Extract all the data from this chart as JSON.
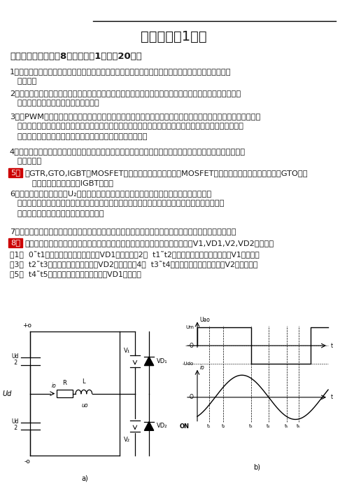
{
  "title": "考试试卷（1）卷",
  "section1_header": "一、填空题（本题共8小题，每空1分，共20分）",
  "q1": "1、电子技术包括＿＿＿＿＿＿和电力电子技术两大分支，通常所说的模拟电子技术和数字电子技术就属\n   于前者。",
  "q2": "2、为减少自身损耗，提高效率，电力电子器件一般都工作在＿＿＿＿＿＿状态。当器件的工作频率极高时，\n   ＿＿＿＿＿＿损耗合成为主要的损耗。",
  "q3": "3、在PWM控制电路中，载波频率与调制信号频率之比称为＿＿＿＿＿＿＿＿＿＿，当它为常数时的调制方式称为\n   ＿＿＿＿＿＿调制。在逆变电路的输出频率围划分成若干频段，每个频段载波频率与调制信号频率之比为给\n   定的调制方式处为＿＿＿＿＿＿分段异步＿＿＿＿＿＿调制。",
  "q4": "4、面积等效原理指的是，＿＿冲量＿＿＿相等而＿＿形状＿＿不同的窄脆冲加在具有惯性的环节上时，其效果\n   基本相同。",
  "q5": "在GTR,GTO,IGBT与MOSFET中，开关速度最快的是＿＿MOSFET＿，单管输出功率最大的是＿＿GTO＿，\n   应用最为广泛的是＿＿IGBT＿＿。",
  "q6": "6、设三相电源的相电压为U₂，三相半波可控整流电路接电阵负载时，晶阀管可能承受的最大\n   反向电压为电源线电压的峰値，即＿＿＿＿＿＿＿＿＿＿＿＿＿＿＿＿＿，其承受的最大正向电压\n   为＿＿＿＿＿＿＿＿＿＿＿＿＿＿＿＿。",
  "q7": "7、逆变电路的负载如果接到电源，则称为＿＿＿＿＿＿逆变，如果接到负载，则称为＿＿＿＿＿＿逆变。",
  "q8": "如下图，指出单相半桥电压型逆变电路工作过程中各时间段电流流经的通路（用V1,VD1,V2,VD2表示）。",
  "q8_sub1": "（1）  0˜t1时间段，电流的通路为＿＿VD1＿＿＿；（2）  t1˜t2时间段，电流的通路为＿＿＿V1＿＿＿；",
  "q8_sub2": "（3）  t2˜t3时间段，电流的通路为＿VD2＿＿＿；（4）  t3˜t4时间段，电流的通路为＿＿V2＿＿＿＿；",
  "q8_sub3": "（5）  t4˜t5时间段，电流的通路为＿＿＿VD1＿＿＿；",
  "label_a": "a)",
  "label_b": "b)",
  "bg_color": "#ffffff",
  "text_color": "#1a1a1a",
  "red_color": "#cc0000"
}
